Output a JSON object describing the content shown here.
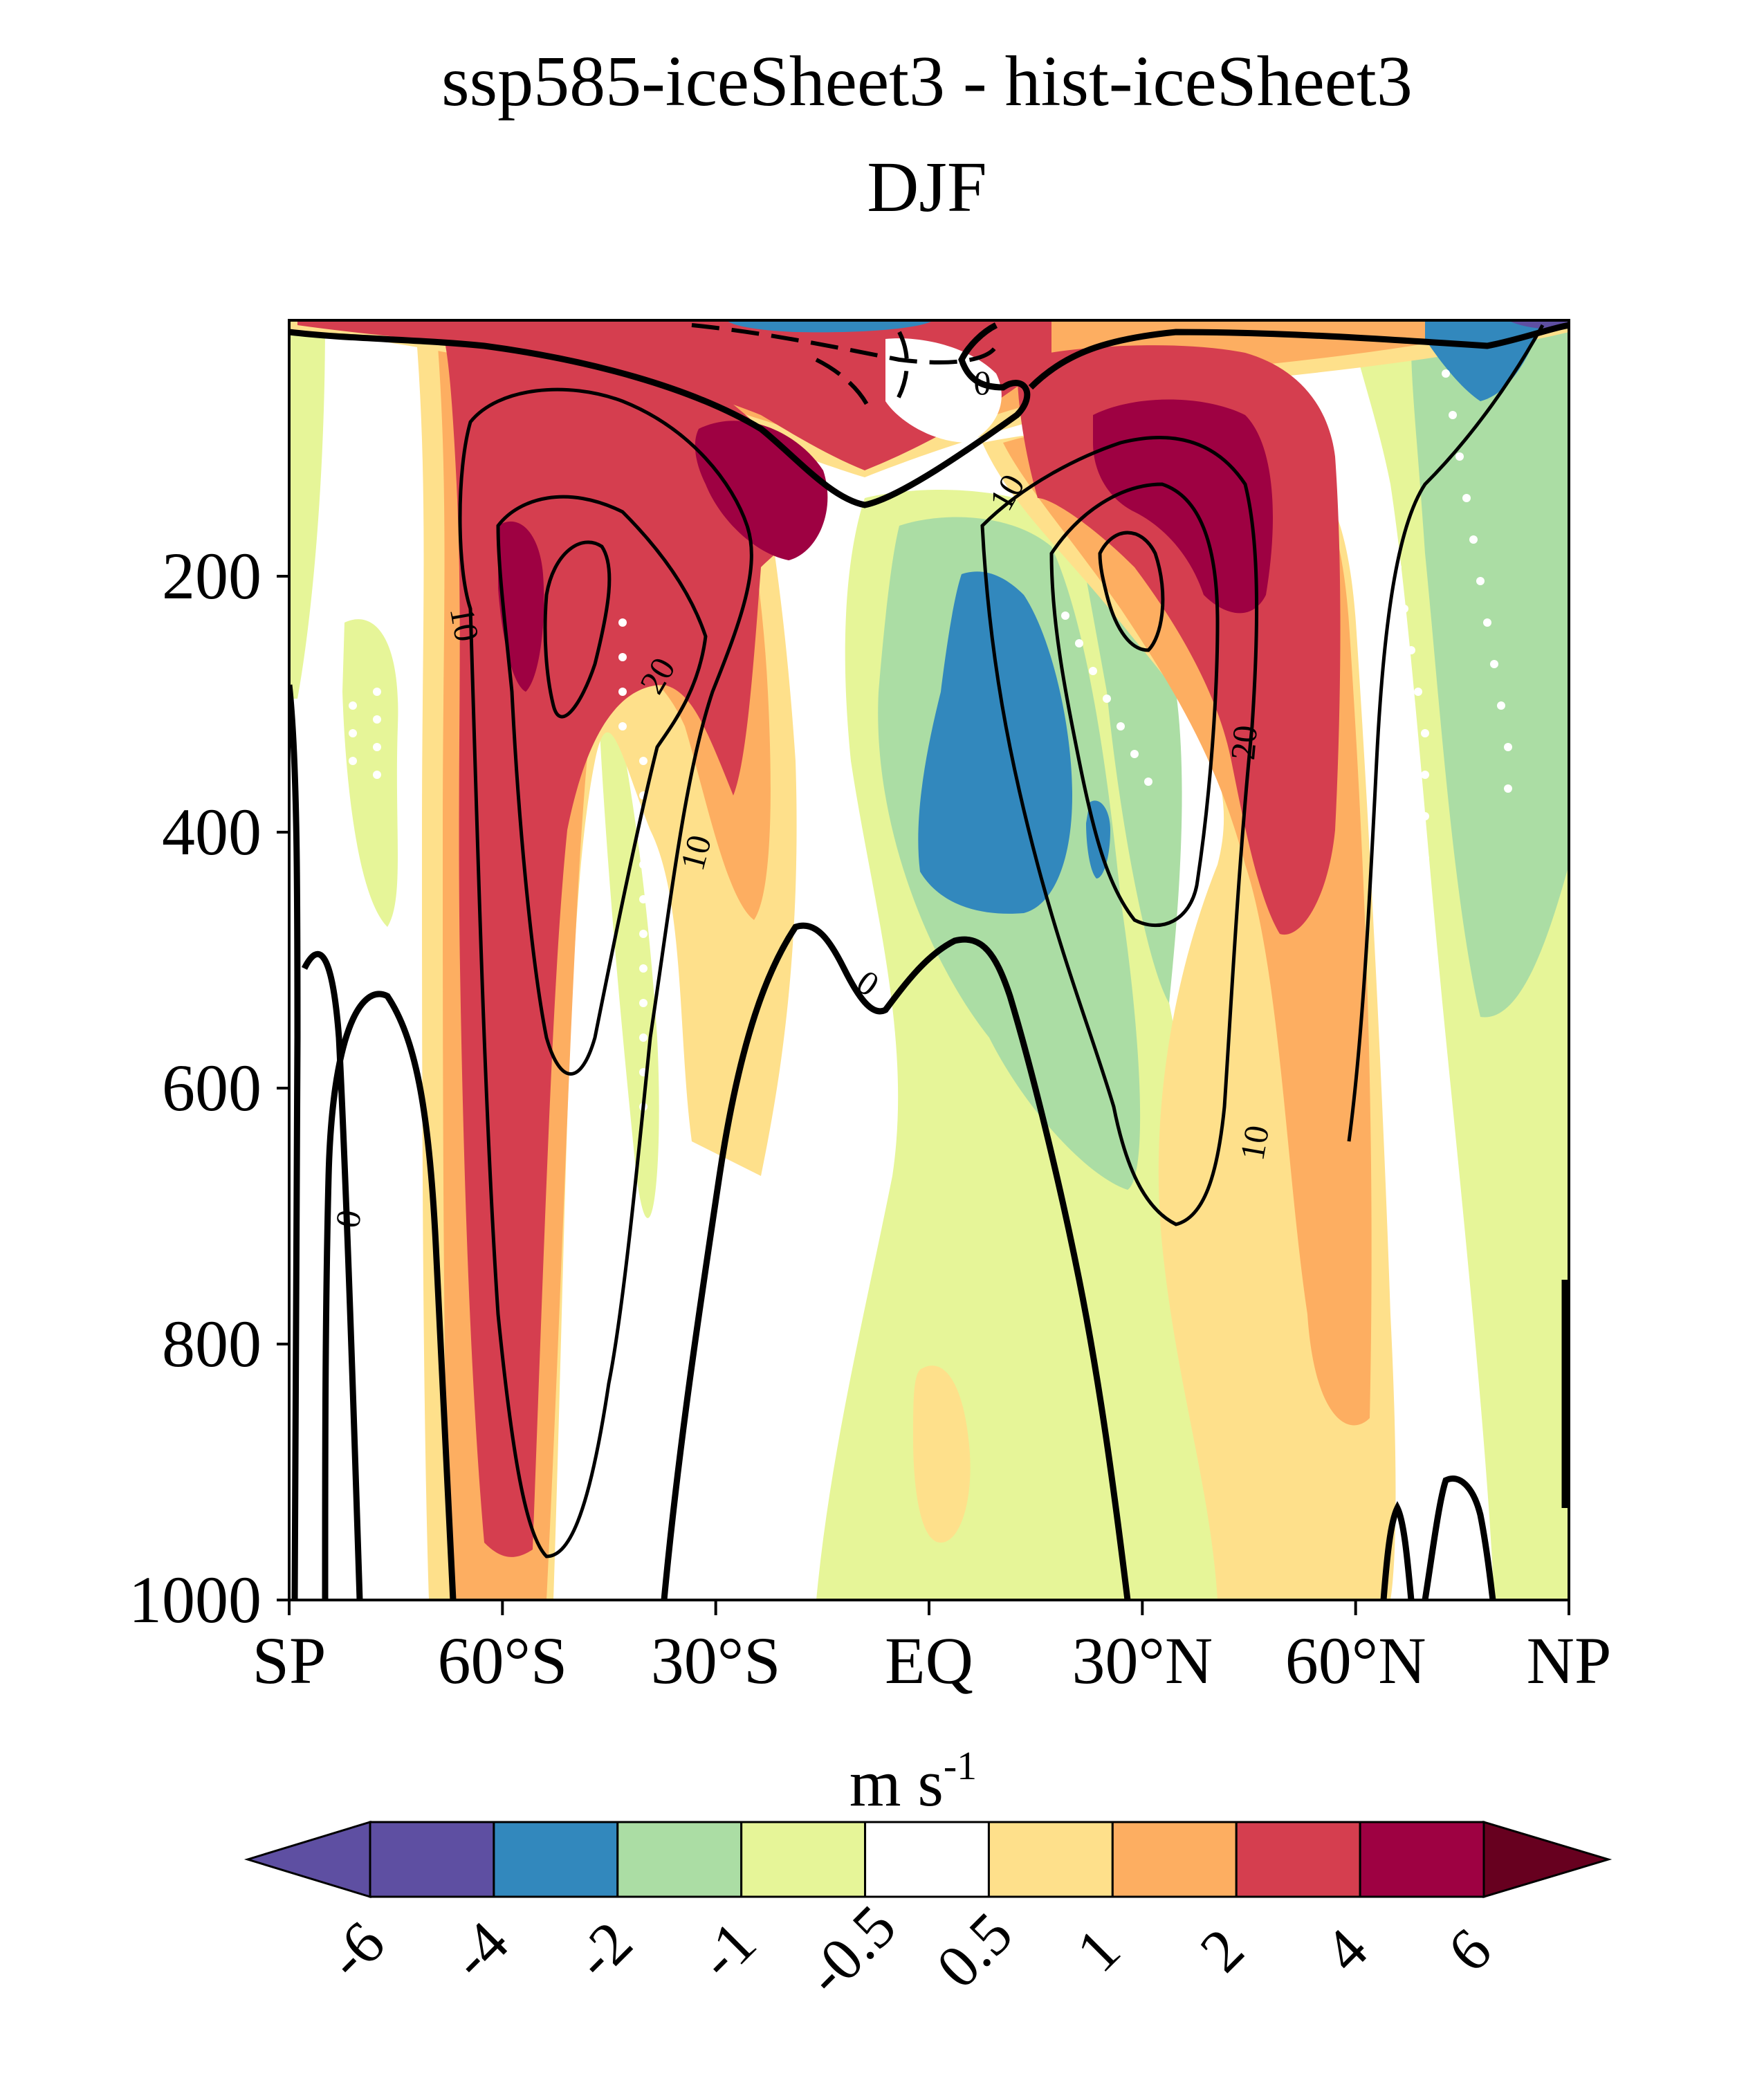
{
  "chart_data": {
    "type": "heatmap",
    "title": "ssp585-iceSheet3 - hist-iceSheet3",
    "subtitle": "DJF",
    "xlabel": "",
    "ylabel": "",
    "x_ticks": [
      "SP",
      "60°S",
      "30°S",
      "EQ",
      "30°N",
      "60°N",
      "NP"
    ],
    "x_tick_values": [
      -90,
      -60,
      -30,
      0,
      30,
      60,
      90
    ],
    "xlim": [
      -90,
      90
    ],
    "y_ticks": [
      "200",
      "400",
      "600",
      "800",
      "1000"
    ],
    "y_tick_values": [
      200,
      400,
      600,
      800,
      1000
    ],
    "ylim": [
      1000,
      0
    ],
    "colorbar": {
      "label_main": "m s",
      "label_exponent": "-1",
      "tick_labels": [
        "-6",
        "-4",
        "-2",
        "-1",
        "-0.5",
        "0.5",
        "1",
        "2",
        "4",
        "6"
      ],
      "levels": [
        -6,
        -4,
        -2,
        -1,
        -0.5,
        0.5,
        1,
        2,
        4,
        6
      ],
      "colors": [
        "#5e4fa2",
        "#5e4fa2",
        "#3288bd",
        "#abdda4",
        "#e6f598",
        "#ffffff",
        "#fee08b",
        "#fdae61",
        "#d53e4f",
        "#9e0142",
        "#67001f"
      ],
      "extend": "both"
    },
    "filled_regions": [
      {
        "level_range": "2 to 4",
        "color": "#d53e4f",
        "description": "southern jet tongue",
        "lat": [
          -72,
          -45
        ],
        "p": [
          100,
          980
        ]
      },
      {
        "level_range": "2 to 4",
        "color": "#d53e4f",
        "description": "northern jet tongue",
        "lat": [
          25,
          58
        ],
        "p": [
          100,
          520
        ]
      },
      {
        "level_range": "4 to 6",
        "color": "#9e0142",
        "lat": [
          -30,
          -15
        ],
        "p": [
          120,
          210
        ]
      },
      {
        "level_range": "4 to 6",
        "color": "#9e0142",
        "lat": [
          28,
          48
        ],
        "p": [
          100,
          240
        ]
      },
      {
        "level_range": "-4 to -2",
        "color": "#3288bd",
        "description": "tropical easterly anomaly",
        "lat": [
          1,
          17
        ],
        "p": [
          200,
          470
        ]
      },
      {
        "level_range": "-4 to -2",
        "color": "#3288bd",
        "lat": [
          60,
          78
        ],
        "p": [
          5,
          65
        ]
      }
    ],
    "contour_levels": [
      0,
      10,
      20
    ],
    "contour_labels": [
      "0",
      "0",
      "0",
      "10",
      "10",
      "10",
      "10",
      "20",
      "20"
    ]
  }
}
